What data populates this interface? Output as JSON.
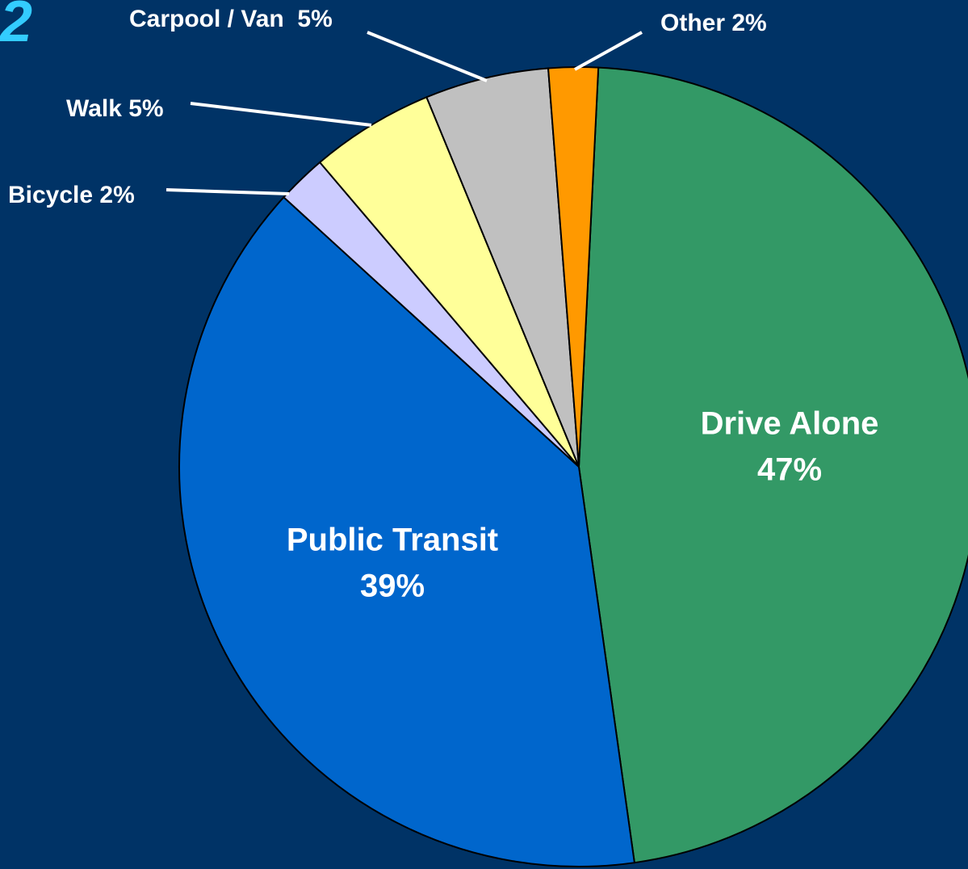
{
  "chart_data": {
    "type": "pie",
    "annotations": [
      "2"
    ],
    "categories": [
      "Drive Alone",
      "Public Transit",
      "Bicycle",
      "Walk",
      "Carpool / Van",
      "Other"
    ],
    "values": [
      47,
      39,
      2,
      5,
      5,
      2
    ],
    "value_labels": [
      "47%",
      "39%",
      "2%",
      "5%",
      "5%",
      "2%"
    ],
    "colors": [
      "#339966",
      "#0066CC",
      "#CCCCFF",
      "#FFFF99",
      "#C0C0C0",
      "#FF9900"
    ],
    "background": "#003366"
  }
}
